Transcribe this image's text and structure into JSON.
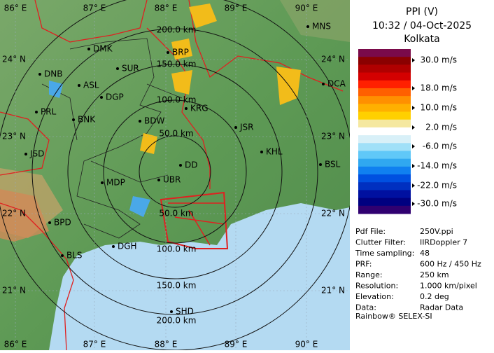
{
  "header": {
    "title": "PPI (V)",
    "time": "10:32 / 04-Oct-2025",
    "site": "Kolkata"
  },
  "lon_labels": [
    "86° E",
    "87° E",
    "88° E",
    "89° E",
    "90° E"
  ],
  "lat_labels": [
    "24° N",
    "23° N",
    "22° N",
    "21° N"
  ],
  "range_labels": {
    "north": [
      "200.0 km",
      "150.0 km",
      "100.0 km",
      "50.0 km"
    ],
    "south": [
      "50.0 km",
      "100.0 km",
      "150.0 km",
      "200.0 km"
    ]
  },
  "places": [
    "MNS",
    "DMK",
    "BRP",
    "DNB",
    "SUR",
    "ASL",
    "DCA",
    "DGP",
    "KRG",
    "PRL",
    "BNK",
    "BDW",
    "JSR",
    "JSD",
    "KHL",
    "DD",
    "BSL",
    "MDP",
    "UBR",
    "BPD",
    "DGH",
    "BLS",
    "SHD"
  ],
  "scale_labels": [
    "30.0 m/s",
    "18.0 m/s",
    "10.0 m/s",
    "2.0 m/s",
    "-6.0 m/s",
    "-14.0 m/s",
    "-22.0 m/s",
    "-30.0 m/s"
  ],
  "info": [
    [
      "Pdf File:",
      "250V.ppi"
    ],
    [
      "Clutter Filter:",
      "IIRDoppler 7"
    ],
    [
      "Time sampling:",
      "48"
    ],
    [
      "PRF:",
      "600 Hz / 450 Hz"
    ],
    [
      "Range:",
      "250 km"
    ],
    [
      "Resolution:",
      "1.000 km/pixel"
    ],
    [
      "Elevation:",
      "0.2 deg"
    ],
    [
      "Data:",
      "Radar Data"
    ]
  ],
  "footer": "Rainbow® SELEX-SI"
}
